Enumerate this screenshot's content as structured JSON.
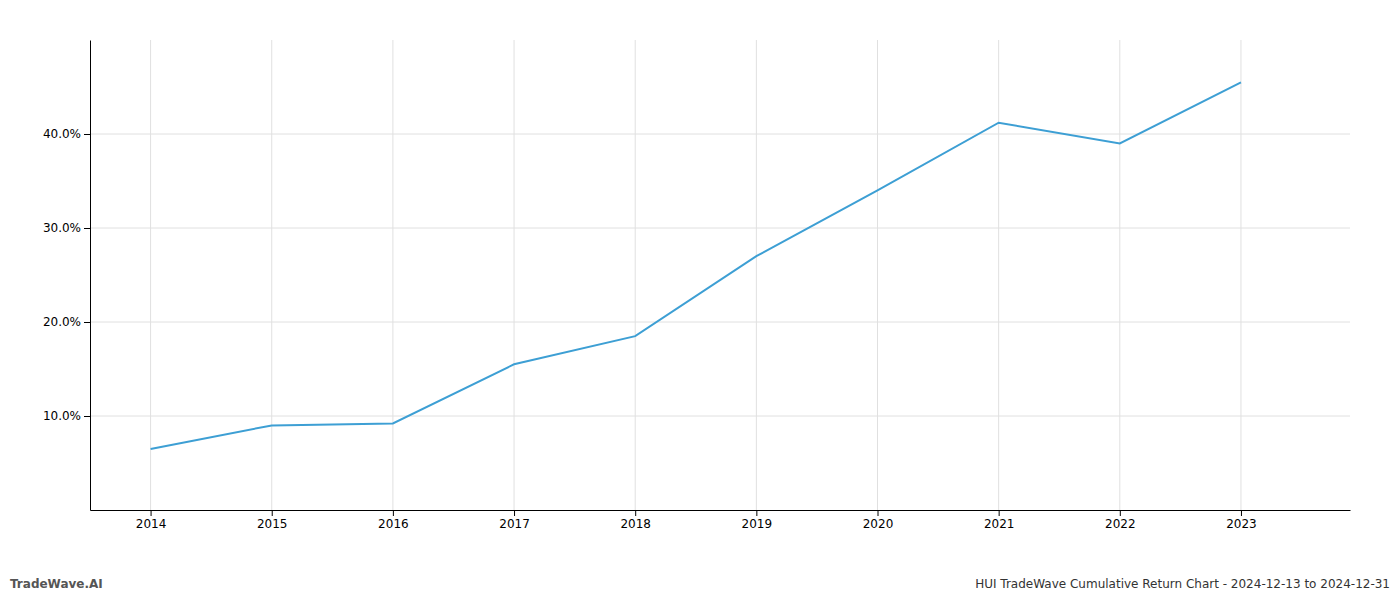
{
  "chart_data": {
    "type": "line",
    "title": "HUI TradeWave Cumulative Return Chart - 2024-12-13 to 2024-12-31",
    "annotations": [
      "TradeWave.AI"
    ],
    "x": [
      2014,
      2015,
      2016,
      2017,
      2018,
      2019,
      2020,
      2021,
      2022,
      2023
    ],
    "values": [
      6.5,
      9.0,
      9.2,
      15.5,
      18.5,
      27.0,
      34.0,
      41.2,
      39.0,
      45.5
    ],
    "color": "#3d9fd4",
    "xlim": [
      2013.5,
      2023.9
    ],
    "ylim": [
      0,
      50
    ],
    "xticks": [
      2014,
      2015,
      2016,
      2017,
      2018,
      2019,
      2020,
      2021,
      2022,
      2023
    ],
    "yticks": [
      {
        "value": 10.0,
        "label": "10.0%"
      },
      {
        "value": 20.0,
        "label": "20.0%"
      },
      {
        "value": 30.0,
        "label": "30.0%"
      },
      {
        "value": 40.0,
        "label": "40.0%"
      }
    ],
    "grid": true
  }
}
